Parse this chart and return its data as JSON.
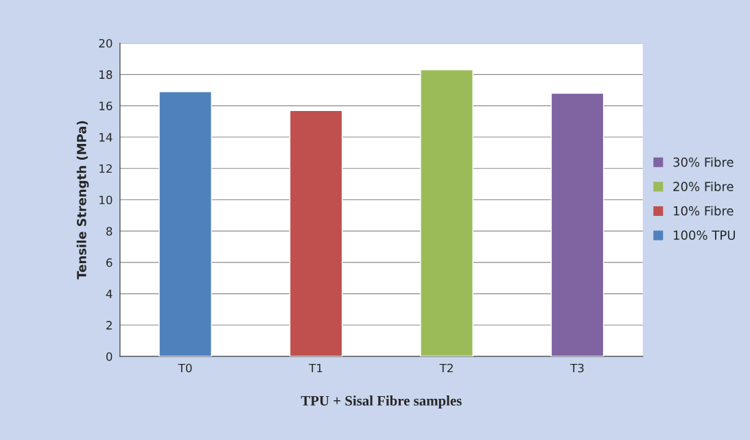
{
  "chart_data": {
    "type": "bar",
    "xlabel": "TPU + Sisal Fibre samples",
    "ylabel": "Tensile Strength (MPa)",
    "categories": [
      "T0",
      "T1",
      "T2",
      "T3"
    ],
    "series": [
      {
        "name": "100% TPU",
        "color": "#4f81bd",
        "values": [
          16.9,
          null,
          null,
          null
        ]
      },
      {
        "name": "10% Fibre",
        "color": "#c0504d",
        "values": [
          null,
          15.7,
          null,
          null
        ]
      },
      {
        "name": "20% Fibre",
        "color": "#9bbb59",
        "values": [
          null,
          null,
          18.3,
          null
        ]
      },
      {
        "name": "30% Fibre",
        "color": "#8064a2",
        "values": [
          null,
          null,
          null,
          16.8
        ]
      }
    ],
    "ylim": [
      0,
      20
    ],
    "yticks": [
      0,
      2,
      4,
      6,
      8,
      10,
      12,
      14,
      16,
      18,
      20
    ],
    "grid": "y",
    "legend": "right"
  }
}
